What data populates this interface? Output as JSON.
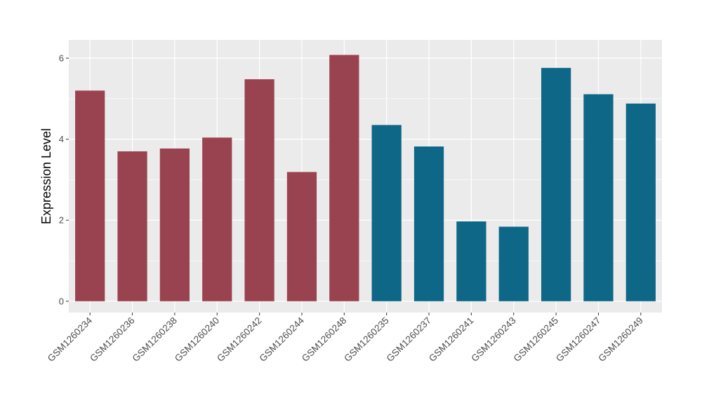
{
  "chart_data": {
    "type": "bar",
    "title": "",
    "xlabel": "",
    "ylabel": "Expression Level",
    "ylim": [
      -0.28,
      6.45
    ],
    "yticks": [
      0,
      2,
      4,
      6
    ],
    "ytick_labels": [
      "0",
      "2",
      "4",
      "6"
    ],
    "grid": true,
    "legend": "none",
    "background_color": "#EBEBEB",
    "grid_color": "#FFFFFF",
    "categories": [
      "GSM1260234",
      "GSM1260236",
      "GSM1260238",
      "GSM1260240",
      "GSM1260242",
      "GSM1260244",
      "GSM1260248",
      "GSM1260235",
      "GSM1260237",
      "GSM1260241",
      "GSM1260243",
      "GSM1260245",
      "GSM1260247",
      "GSM1260249"
    ],
    "values": [
      5.2,
      3.7,
      3.77,
      4.04,
      5.48,
      3.19,
      6.08,
      4.35,
      3.82,
      1.97,
      1.84,
      5.76,
      5.11,
      4.88
    ],
    "colors": [
      "#9A4350",
      "#9A4350",
      "#9A4350",
      "#9A4350",
      "#9A4350",
      "#9A4350",
      "#9A4350",
      "#0E6787",
      "#0E6787",
      "#0E6787",
      "#0E6787",
      "#0E6787",
      "#0E6787",
      "#0E6787"
    ]
  }
}
